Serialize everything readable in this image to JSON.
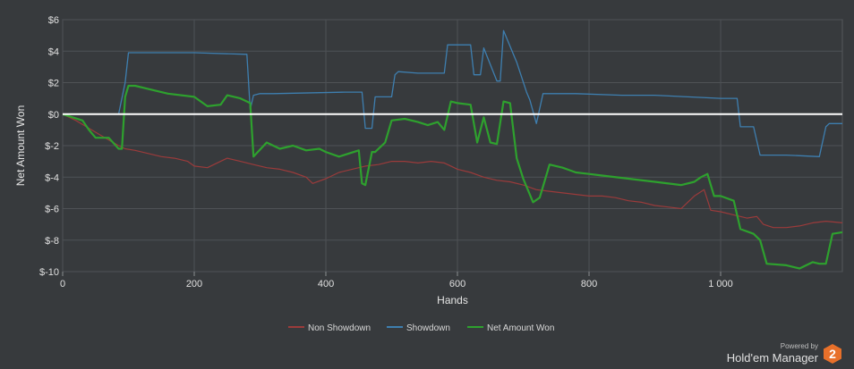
{
  "chart_data": {
    "type": "line",
    "xlabel": "Hands",
    "ylabel": "Net Amount Won",
    "xlim": [
      0,
      1185
    ],
    "ylim": [
      -10,
      6
    ],
    "x_ticks": [
      0,
      200,
      400,
      600,
      800,
      1000
    ],
    "x_tick_labels": [
      "0",
      "200",
      "400",
      "600",
      "800",
      "1 000"
    ],
    "y_ticks": [
      6,
      4,
      2,
      0,
      -2,
      -4,
      -6,
      -8,
      -10
    ],
    "y_tick_labels": [
      "$6",
      "$4",
      "$2",
      "$0",
      "$-2",
      "$-4",
      "$-6",
      "$-8",
      "$-10"
    ],
    "grid": true,
    "legend_position": "bottom-center",
    "series": [
      {
        "name": "Non Showdown",
        "color": "#9b3b3b",
        "x": [
          0,
          20,
          40,
          60,
          85,
          95,
          110,
          130,
          150,
          170,
          190,
          200,
          220,
          240,
          250,
          270,
          290,
          310,
          330,
          350,
          370,
          380,
          400,
          420,
          440,
          460,
          480,
          500,
          520,
          540,
          560,
          580,
          600,
          620,
          640,
          660,
          680,
          700,
          720,
          740,
          760,
          780,
          800,
          820,
          840,
          860,
          880,
          900,
          920,
          940,
          960,
          975,
          985,
          1000,
          1020,
          1040,
          1055,
          1065,
          1080,
          1100,
          1120,
          1140,
          1160,
          1185
        ],
        "y": [
          0,
          -0.4,
          -0.9,
          -1.4,
          -2.0,
          -2.2,
          -2.3,
          -2.5,
          -2.7,
          -2.8,
          -3.0,
          -3.3,
          -3.4,
          -3.0,
          -2.8,
          -3.0,
          -3.2,
          -3.4,
          -3.5,
          -3.7,
          -4.0,
          -4.4,
          -4.1,
          -3.7,
          -3.5,
          -3.3,
          -3.2,
          -3.0,
          -3.0,
          -3.1,
          -3.0,
          -3.1,
          -3.5,
          -3.7,
          -4.0,
          -4.2,
          -4.3,
          -4.5,
          -4.8,
          -4.9,
          -5.0,
          -5.1,
          -5.2,
          -5.2,
          -5.3,
          -5.5,
          -5.6,
          -5.8,
          -5.9,
          -6.0,
          -5.2,
          -4.8,
          -6.1,
          -6.2,
          -6.4,
          -6.6,
          -6.5,
          -7.0,
          -7.2,
          -7.2,
          -7.1,
          -6.9,
          -6.8,
          -6.9
        ]
      },
      {
        "name": "Showdown",
        "color": "#3e7fb0",
        "x": [
          0,
          85,
          95,
          100,
          110,
          200,
          280,
          285,
          290,
          300,
          320,
          430,
          455,
          460,
          470,
          475,
          500,
          505,
          510,
          540,
          580,
          585,
          620,
          625,
          635,
          640,
          660,
          665,
          670,
          690,
          705,
          710,
          720,
          730,
          780,
          850,
          900,
          950,
          1000,
          1025,
          1030,
          1050,
          1060,
          1080,
          1100,
          1150,
          1160,
          1165,
          1185
        ],
        "y": [
          0,
          0,
          2.0,
          3.9,
          3.9,
          3.9,
          3.8,
          0.3,
          1.2,
          1.3,
          1.3,
          1.4,
          1.4,
          -0.9,
          -0.9,
          1.1,
          1.1,
          2.5,
          2.7,
          2.6,
          2.6,
          4.4,
          4.4,
          2.5,
          2.5,
          4.2,
          2.1,
          2.1,
          5.3,
          3.3,
          1.4,
          0.9,
          -0.6,
          1.3,
          1.3,
          1.2,
          1.2,
          1.1,
          1.0,
          1.0,
          -0.8,
          -0.8,
          -2.6,
          -2.6,
          -2.6,
          -2.7,
          -0.8,
          -0.6,
          -0.6
        ]
      },
      {
        "name": "Net Amount Won",
        "color": "#2ea12e",
        "x": [
          0,
          15,
          30,
          40,
          50,
          70,
          85,
          90,
          95,
          100,
          110,
          140,
          160,
          200,
          220,
          240,
          250,
          270,
          285,
          290,
          310,
          330,
          350,
          370,
          390,
          400,
          420,
          450,
          455,
          460,
          470,
          475,
          490,
          500,
          520,
          540,
          555,
          570,
          580,
          590,
          600,
          620,
          630,
          640,
          650,
          660,
          670,
          680,
          690,
          700,
          715,
          725,
          740,
          760,
          780,
          800,
          820,
          860,
          900,
          940,
          960,
          970,
          980,
          990,
          1000,
          1020,
          1030,
          1050,
          1060,
          1070,
          1100,
          1120,
          1140,
          1150,
          1160,
          1170,
          1185
        ],
        "y": [
          0,
          -0.2,
          -0.4,
          -1.0,
          -1.5,
          -1.5,
          -2.2,
          -2.2,
          1.1,
          1.8,
          1.8,
          1.5,
          1.3,
          1.1,
          0.5,
          0.6,
          1.2,
          1.0,
          0.7,
          -2.7,
          -1.8,
          -2.2,
          -2.0,
          -2.3,
          -2.2,
          -2.4,
          -2.7,
          -2.3,
          -4.4,
          -4.5,
          -2.4,
          -2.4,
          -1.8,
          -0.4,
          -0.3,
          -0.5,
          -0.7,
          -0.5,
          -1.0,
          0.8,
          0.7,
          0.6,
          -1.8,
          -0.2,
          -1.8,
          -1.9,
          0.8,
          0.7,
          -2.8,
          -4.1,
          -5.6,
          -5.3,
          -3.2,
          -3.4,
          -3.7,
          -3.8,
          -3.9,
          -4.1,
          -4.3,
          -4.5,
          -4.3,
          -4.0,
          -3.8,
          -5.2,
          -5.2,
          -5.5,
          -7.3,
          -7.6,
          -8.0,
          -9.5,
          -9.6,
          -9.8,
          -9.4,
          -9.5,
          -9.5,
          -7.6,
          -7.5
        ]
      }
    ]
  },
  "branding": {
    "powered_by": "Powered by",
    "name": "Hold'em Manager",
    "badge": "2",
    "badge_color": "#e8702a"
  }
}
